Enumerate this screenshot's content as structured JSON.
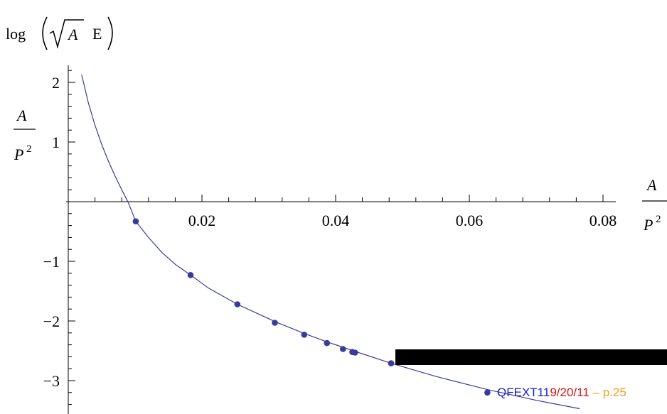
{
  "chart_data": {
    "type": "scatter",
    "ylabel_prefix": "log",
    "ylabel_sqrt_var": "A",
    "ylabel_suffix": "E",
    "frac_numerator": "A",
    "frac_denominator_base": "P",
    "frac_denominator_exp": "2",
    "xlim": [
      0,
      0.08
    ],
    "ylim": [
      -3.5,
      2.2
    ],
    "x_ticks": [
      "0.02",
      "0.04",
      "0.06",
      "0.08"
    ],
    "x_tick_values": [
      0.02,
      0.04,
      0.06,
      0.08
    ],
    "y_ticks": [
      "2",
      "1",
      "−1",
      "−2",
      "−3"
    ],
    "y_tick_values": [
      2,
      1,
      -1,
      -2,
      -3
    ],
    "grid": false,
    "series": [
      {
        "kind": "points",
        "color": "#3a3a9a",
        "x": [
          0.0101,
          0.0183,
          0.0253,
          0.0309,
          0.0353,
          0.0387,
          0.0411,
          0.0425,
          0.0429,
          0.0483,
          0.0627
        ],
        "y": [
          -0.33,
          -1.23,
          -1.72,
          -2.03,
          -2.23,
          -2.37,
          -2.47,
          -2.52,
          -2.53,
          -2.71,
          -3.2
        ]
      },
      {
        "kind": "curve",
        "color": "#3a3a9a",
        "x": [
          0.002,
          0.003,
          0.004,
          0.005,
          0.006,
          0.007,
          0.008,
          0.009,
          0.0101,
          0.012,
          0.014,
          0.016,
          0.0183,
          0.021,
          0.0253,
          0.028,
          0.0309,
          0.0353,
          0.0387,
          0.0411,
          0.0429,
          0.0483,
          0.055,
          0.0627,
          0.07,
          0.0765
        ],
        "y": [
          2.13,
          1.66,
          1.28,
          0.96,
          0.68,
          0.43,
          0.2,
          -0.02,
          -0.33,
          -0.6,
          -0.85,
          -1.05,
          -1.23,
          -1.45,
          -1.72,
          -1.86,
          -2.01,
          -2.21,
          -2.35,
          -2.44,
          -2.51,
          -2.71,
          -2.93,
          -3.15,
          -3.33,
          -3.47
        ]
      }
    ]
  },
  "footer": {
    "title": "QFEXT11",
    "date": "9/20/11",
    "separator": " – ",
    "page": "p.25",
    "title_color": "#1a1ad6",
    "date_color": "#e01010",
    "page_color": "#f0a020"
  },
  "overlay": {
    "color": "#000000"
  }
}
